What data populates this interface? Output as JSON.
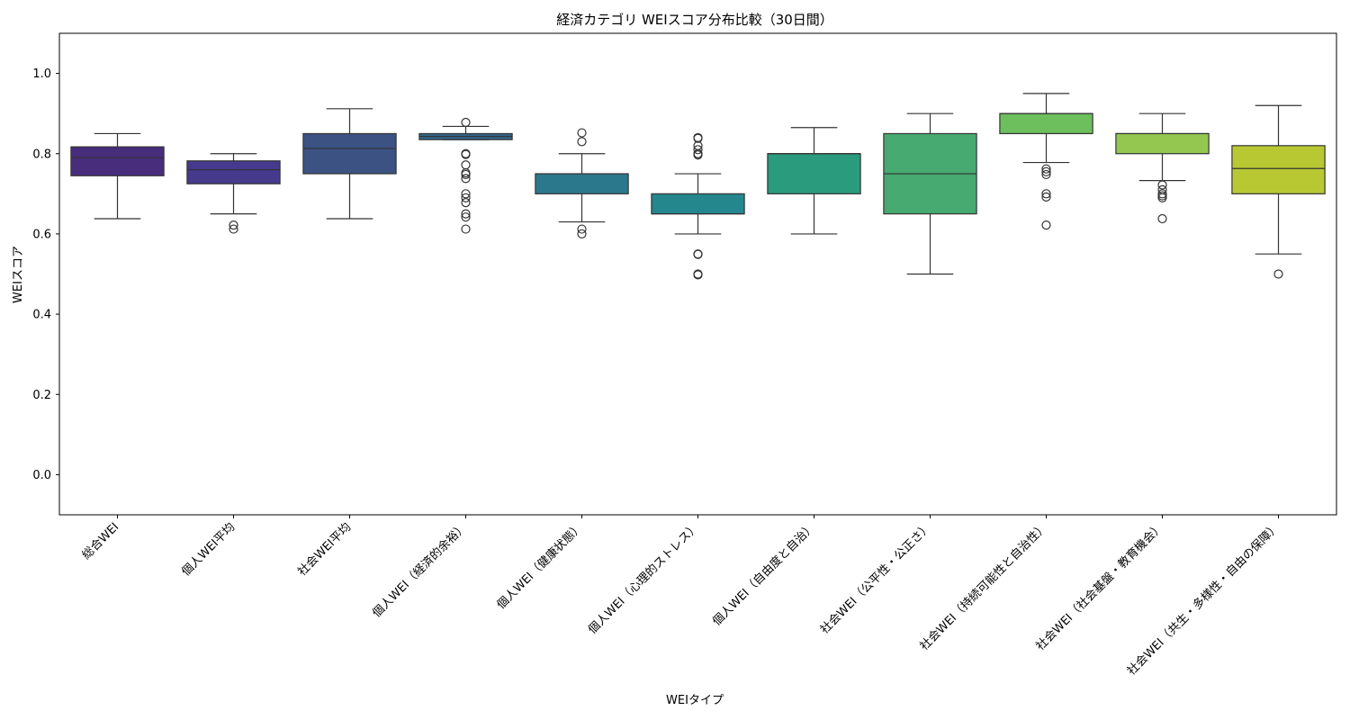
{
  "chart_data": {
    "type": "box",
    "title": "経済カテゴリ WEIスコア分布比較（30日間）",
    "xlabel": "WEIタイプ",
    "ylabel": "WEIスコア",
    "ylim": [
      -0.1,
      1.1
    ],
    "yticks": [
      "0.0",
      "0.2",
      "0.4",
      "0.6",
      "0.8",
      "1.0"
    ],
    "grid": false,
    "legend": "none",
    "categories": [
      "総合WEI",
      "個人WEI平均",
      "社会WEI平均",
      "個人WEI（経済的余裕）",
      "個人WEI（健康状態）",
      "個人WEI（心理的ストレス）",
      "個人WEI（自由度と自治）",
      "社会WEI（公平性・公正さ）",
      "社会WEI（持続可能性と自治性）",
      "社会WEI（社会基盤・教育機会）",
      "社会WEI（共生・多様性・自由の保障）"
    ],
    "boxes": [
      {
        "q1": 0.745,
        "median": 0.79,
        "q3": 0.817,
        "whisker_low": 0.638,
        "whisker_high": 0.85,
        "outliers": [],
        "color": "#472d7b"
      },
      {
        "q1": 0.725,
        "median": 0.76,
        "q3": 0.782,
        "whisker_low": 0.65,
        "whisker_high": 0.8,
        "outliers": [
          0.622,
          0.612
        ],
        "color": "#453a8c"
      },
      {
        "q1": 0.75,
        "median": 0.813,
        "q3": 0.85,
        "whisker_low": 0.638,
        "whisker_high": 0.912,
        "outliers": [],
        "color": "#3b5283"
      },
      {
        "q1": 0.835,
        "median": 0.843,
        "q3": 0.85,
        "whisker_low": 0.835,
        "whisker_high": 0.868,
        "outliers": [
          0.878,
          0.8,
          0.798,
          0.772,
          0.752,
          0.748,
          0.738,
          0.7,
          0.69,
          0.678,
          0.65,
          0.642,
          0.612
        ],
        "color": "#33668a"
      },
      {
        "q1": 0.7,
        "median": 0.75,
        "q3": 0.75,
        "whisker_low": 0.63,
        "whisker_high": 0.8,
        "outliers": [
          0.852,
          0.83,
          0.612,
          0.6
        ],
        "color": "#2b788d"
      },
      {
        "q1": 0.65,
        "median": 0.65,
        "q3": 0.7,
        "whisker_low": 0.6,
        "whisker_high": 0.75,
        "outliers": [
          0.84,
          0.838,
          0.82,
          0.81,
          0.8,
          0.797,
          0.55,
          0.549,
          0.5,
          0.498
        ],
        "color": "#24878e"
      },
      {
        "q1": 0.7,
        "median": 0.8,
        "q3": 0.8,
        "whisker_low": 0.6,
        "whisker_high": 0.865,
        "outliers": [],
        "color": "#2a9b7c"
      },
      {
        "q1": 0.65,
        "median": 0.75,
        "q3": 0.85,
        "whisker_low": 0.5,
        "whisker_high": 0.9,
        "outliers": [],
        "color": "#47aa70"
      },
      {
        "q1": 0.85,
        "median": 0.9,
        "q3": 0.9,
        "whisker_low": 0.778,
        "whisker_high": 0.95,
        "outliers": [
          0.762,
          0.755,
          0.748,
          0.7,
          0.692,
          0.622
        ],
        "color": "#6cbf5c"
      },
      {
        "q1": 0.8,
        "median": 0.85,
        "q3": 0.85,
        "whisker_low": 0.733,
        "whisker_high": 0.9,
        "outliers": [
          0.722,
          0.71,
          0.7,
          0.695,
          0.69,
          0.638
        ],
        "color": "#93c750"
      },
      {
        "q1": 0.7,
        "median": 0.763,
        "q3": 0.82,
        "whisker_low": 0.55,
        "whisker_high": 0.92,
        "outliers": [
          0.5
        ],
        "color": "#b8c833"
      }
    ]
  }
}
